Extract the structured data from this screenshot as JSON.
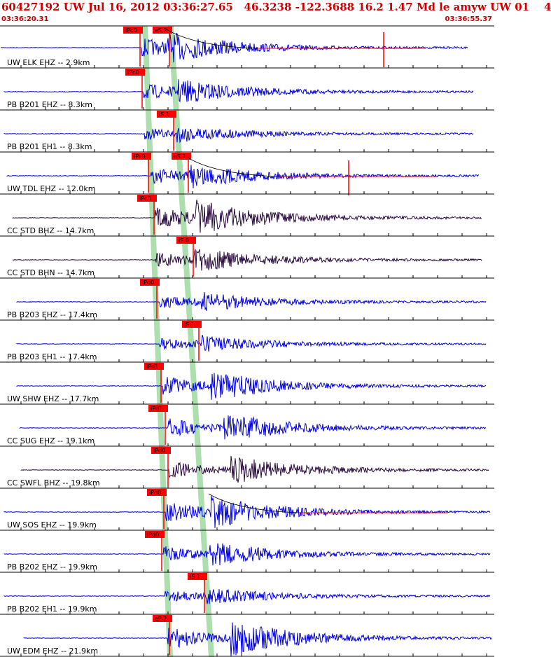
{
  "header": {
    "title": "60427192 UW Jul 16, 2012 03:36:27.65   46.3238 -122.3688 16.2 1.47 Md le amyw UW 01    4",
    "start_time": "03:36:20.31",
    "end_time": "03:36:55.37"
  },
  "colors": {
    "header_text": "#cc0000",
    "trace_blue": "#0000dd",
    "trace_dark": "#2a0a40",
    "pick_flag": "#ff0000",
    "pick_band": "#9fd89f",
    "frame": "#000000"
  },
  "traces": [
    {
      "label": "UW ELK EHZ --  2.9km",
      "color": "blue",
      "picks": [
        "iPc0",
        "eS 2"
      ],
      "coda": true,
      "spike": true
    },
    {
      "label": "PB B201 EHZ --  8.3km",
      "color": "blue",
      "picks": [
        "iPc0"
      ],
      "coda": false,
      "spike": false
    },
    {
      "label": "PB B201 EH1 --  8.3km",
      "color": "blue",
      "picks": [
        "iS 1"
      ],
      "coda": false,
      "spike": false
    },
    {
      "label": "UW TDL EHZ --  12.0km",
      "color": "blue",
      "picks": [
        "iPc0",
        "eS 1"
      ],
      "coda": true,
      "spike": true
    },
    {
      "label": "CC STD BHZ --  14.7km",
      "color": "dark",
      "picks": [
        "iPc0"
      ],
      "coda": false,
      "spike": false
    },
    {
      "label": "CC STD BHN --  14.7km",
      "color": "dark",
      "picks": [
        "iS 0"
      ],
      "coda": false,
      "spike": false
    },
    {
      "label": "PB B203 EHZ --  17.4km",
      "color": "blue",
      "picks": [
        "iPd0"
      ],
      "coda": false,
      "spike": false
    },
    {
      "label": "PB B203 EH1 --  17.4km",
      "color": "blue",
      "picks": [
        "iS 1"
      ],
      "coda": false,
      "spike": false
    },
    {
      "label": "UW SHW EHZ --  17.7km",
      "color": "blue",
      "picks": [
        "iPd1"
      ],
      "coda": false,
      "spike": false
    },
    {
      "label": "CC SUG EHZ --  19.1km",
      "color": "blue",
      "picks": [
        "iPd1"
      ],
      "coda": false,
      "spike": false
    },
    {
      "label": "CC SWFL BHZ --  19.8km",
      "color": "dark",
      "picks": [
        "iPd0"
      ],
      "coda": false,
      "spike": false
    },
    {
      "label": "UW SOS EHZ --  19.9km",
      "color": "blue",
      "picks": [
        "iPd0"
      ],
      "coda": true,
      "spike": false
    },
    {
      "label": "PB B202 EHZ --  19.9km",
      "color": "blue",
      "picks": [
        "iPd0"
      ],
      "coda": false,
      "spike": false
    },
    {
      "label": "PB B202 EH1 --  19.9km",
      "color": "blue",
      "picks": [
        "iS 1"
      ],
      "coda": false,
      "spike": false
    },
    {
      "label": "UW EDM EHZ --  21.9km",
      "color": "blue",
      "picks": [
        "eP 2"
      ],
      "coda": false,
      "spike": false
    }
  ]
}
